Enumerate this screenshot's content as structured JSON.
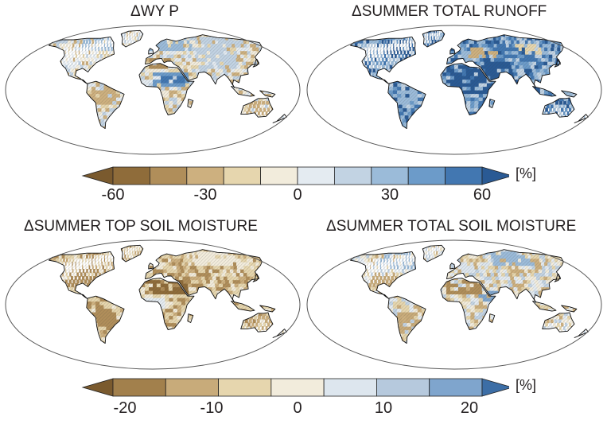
{
  "panels": [
    {
      "title": "ΔWY P",
      "dominant": "mixed"
    },
    {
      "title": "ΔSUMMER TOTAL RUNOFF",
      "dominant": "wet"
    },
    {
      "title": "ΔSUMMER TOP SOIL MOISTURE",
      "dominant": "dry"
    },
    {
      "title": "ΔSUMMER TOTAL SOIL MOISTURE",
      "dominant": "mixed-dry"
    }
  ],
  "colorbars": [
    {
      "unit": "[%]",
      "tick_labels": [
        "-60",
        "-30",
        "0",
        "30",
        "60"
      ],
      "colors": [
        "#7a5a2e",
        "#8f6c3a",
        "#b08e5a",
        "#cdb07f",
        "#e6d6ae",
        "#f2ecdc",
        "#e4ebf1",
        "#c2d3e3",
        "#9bbbd9",
        "#6c9bc9",
        "#4277b1",
        "#2a5a94"
      ]
    },
    {
      "unit": "[%]",
      "tick_labels": [
        "-20",
        "-10",
        "0",
        "10",
        "20"
      ],
      "colors": [
        "#7a5a2e",
        "#a2804c",
        "#c8ab7a",
        "#e6d6ae",
        "#f2ecdc",
        "#dde6ee",
        "#b6c9dd",
        "#7fa5cd",
        "#3c6ea6"
      ]
    }
  ]
}
